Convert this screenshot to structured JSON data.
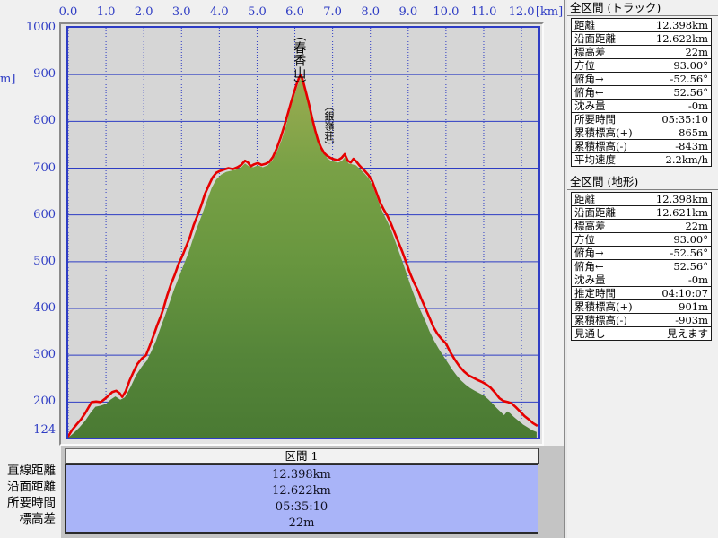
{
  "axes": {
    "x_ticks": [
      {
        "km": 0,
        "label": "0.0"
      },
      {
        "km": 1,
        "label": "1.0"
      },
      {
        "km": 2,
        "label": "2.0"
      },
      {
        "km": 3,
        "label": "3.0"
      },
      {
        "km": 4,
        "label": "4.0"
      },
      {
        "km": 5,
        "label": "5.0"
      },
      {
        "km": 6,
        "label": "6.0"
      },
      {
        "km": 7,
        "label": "7.0"
      },
      {
        "km": 8,
        "label": "8.0"
      },
      {
        "km": 9,
        "label": "9.0"
      },
      {
        "km": 10,
        "label": "10.0"
      },
      {
        "km": 11,
        "label": "11.0"
      },
      {
        "km": 12,
        "label": "12.0"
      }
    ],
    "x_unit_label": "[km]",
    "y_ticks": [
      {
        "m": 1000,
        "label": "1000"
      },
      {
        "m": 900,
        "label": "900"
      },
      {
        "m": 800,
        "label": "800"
      },
      {
        "m": 700,
        "label": "700"
      },
      {
        "m": 600,
        "label": "600"
      },
      {
        "m": 500,
        "label": "500"
      },
      {
        "m": 400,
        "label": "400"
      },
      {
        "m": 300,
        "label": "300"
      },
      {
        "m": 200,
        "label": "200"
      },
      {
        "m": 124,
        "label": "124"
      }
    ],
    "y_unit_fragment": "m]"
  },
  "chart_data": {
    "type": "area",
    "title": "",
    "xlabel": "[km]",
    "ylabel": "[m]",
    "x_range": [
      0,
      12.45
    ],
    "y_range": [
      124,
      1000
    ],
    "x_gridlines": [
      0,
      1,
      2,
      3,
      4,
      5,
      6,
      7,
      8,
      9,
      10,
      11,
      12
    ],
    "y_gridlines": [
      200,
      300,
      400,
      500,
      600,
      700,
      800,
      900
    ],
    "annotations": [
      {
        "label": "（春香山）",
        "km": 6.16,
        "top_m": 1000,
        "size": 14
      },
      {
        "label": "（銀嶺荘）",
        "km": 6.95,
        "top_m": 845,
        "size": 11
      }
    ],
    "series": [
      {
        "name": "terrain-profile",
        "role": "fill",
        "points": [
          [
            0.0,
            124
          ],
          [
            0.15,
            134
          ],
          [
            0.3,
            146
          ],
          [
            0.45,
            160
          ],
          [
            0.6,
            178
          ],
          [
            0.72,
            190
          ],
          [
            0.85,
            192
          ],
          [
            1.0,
            196
          ],
          [
            1.12,
            205
          ],
          [
            1.25,
            212
          ],
          [
            1.38,
            205
          ],
          [
            1.5,
            210
          ],
          [
            1.65,
            232
          ],
          [
            1.8,
            258
          ],
          [
            1.95,
            276
          ],
          [
            2.08,
            288
          ],
          [
            2.2,
            308
          ],
          [
            2.32,
            330
          ],
          [
            2.45,
            360
          ],
          [
            2.55,
            382
          ],
          [
            2.68,
            412
          ],
          [
            2.8,
            440
          ],
          [
            2.92,
            465
          ],
          [
            3.05,
            492
          ],
          [
            3.18,
            518
          ],
          [
            3.3,
            548
          ],
          [
            3.42,
            575
          ],
          [
            3.55,
            602
          ],
          [
            3.68,
            632
          ],
          [
            3.8,
            658
          ],
          [
            3.92,
            676
          ],
          [
            4.05,
            686
          ],
          [
            4.18,
            692
          ],
          [
            4.3,
            694
          ],
          [
            4.45,
            697
          ],
          [
            4.58,
            702
          ],
          [
            4.68,
            710
          ],
          [
            4.78,
            704
          ],
          [
            4.9,
            702
          ],
          [
            5.02,
            706
          ],
          [
            5.15,
            702
          ],
          [
            5.28,
            706
          ],
          [
            5.4,
            716
          ],
          [
            5.52,
            734
          ],
          [
            5.64,
            758
          ],
          [
            5.75,
            786
          ],
          [
            5.86,
            820
          ],
          [
            5.97,
            852
          ],
          [
            6.07,
            876
          ],
          [
            6.16,
            895
          ],
          [
            6.25,
            872
          ],
          [
            6.35,
            845
          ],
          [
            6.45,
            812
          ],
          [
            6.55,
            782
          ],
          [
            6.65,
            756
          ],
          [
            6.75,
            736
          ],
          [
            6.85,
            722
          ],
          [
            6.95,
            716
          ],
          [
            7.05,
            714
          ],
          [
            7.15,
            712
          ],
          [
            7.25,
            716
          ],
          [
            7.33,
            724
          ],
          [
            7.42,
            710
          ],
          [
            7.52,
            708
          ],
          [
            7.62,
            706
          ],
          [
            7.73,
            698
          ],
          [
            7.85,
            688
          ],
          [
            7.96,
            678
          ],
          [
            8.06,
            662
          ],
          [
            8.16,
            640
          ],
          [
            8.26,
            618
          ],
          [
            8.36,
            600
          ],
          [
            8.46,
            584
          ],
          [
            8.56,
            565
          ],
          [
            8.66,
            543
          ],
          [
            8.76,
            520
          ],
          [
            8.86,
            498
          ],
          [
            8.96,
            474
          ],
          [
            9.06,
            450
          ],
          [
            9.16,
            428
          ],
          [
            9.26,
            408
          ],
          [
            9.36,
            390
          ],
          [
            9.46,
            372
          ],
          [
            9.56,
            352
          ],
          [
            9.68,
            332
          ],
          [
            9.8,
            315
          ],
          [
            9.92,
            300
          ],
          [
            10.04,
            285
          ],
          [
            10.16,
            270
          ],
          [
            10.28,
            257
          ],
          [
            10.4,
            246
          ],
          [
            10.52,
            237
          ],
          [
            10.64,
            230
          ],
          [
            10.76,
            224
          ],
          [
            10.88,
            219
          ],
          [
            11.0,
            214
          ],
          [
            11.12,
            206
          ],
          [
            11.24,
            196
          ],
          [
            11.36,
            186
          ],
          [
            11.46,
            178
          ],
          [
            11.54,
            172
          ],
          [
            11.62,
            180
          ],
          [
            11.7,
            176
          ],
          [
            11.8,
            168
          ],
          [
            11.92,
            160
          ],
          [
            12.04,
            152
          ],
          [
            12.16,
            146
          ],
          [
            12.28,
            140
          ],
          [
            12.4,
            136
          ]
        ]
      },
      {
        "name": "track-profile",
        "role": "line",
        "points": [
          [
            0.0,
            127
          ],
          [
            0.1,
            140
          ],
          [
            0.22,
            152
          ],
          [
            0.34,
            163
          ],
          [
            0.45,
            176
          ],
          [
            0.55,
            190
          ],
          [
            0.62,
            200
          ],
          [
            0.74,
            201
          ],
          [
            0.86,
            200
          ],
          [
            0.96,
            206
          ],
          [
            1.06,
            213
          ],
          [
            1.16,
            221
          ],
          [
            1.27,
            224
          ],
          [
            1.36,
            219
          ],
          [
            1.43,
            211
          ],
          [
            1.52,
            223
          ],
          [
            1.62,
            245
          ],
          [
            1.72,
            263
          ],
          [
            1.83,
            281
          ],
          [
            1.95,
            293
          ],
          [
            2.06,
            300
          ],
          [
            2.16,
            320
          ],
          [
            2.26,
            342
          ],
          [
            2.36,
            365
          ],
          [
            2.45,
            383
          ],
          [
            2.52,
            400
          ],
          [
            2.62,
            428
          ],
          [
            2.72,
            452
          ],
          [
            2.82,
            472
          ],
          [
            2.92,
            495
          ],
          [
            3.02,
            512
          ],
          [
            3.12,
            532
          ],
          [
            3.22,
            552
          ],
          [
            3.32,
            578
          ],
          [
            3.42,
            598
          ],
          [
            3.52,
            620
          ],
          [
            3.62,
            645
          ],
          [
            3.72,
            663
          ],
          [
            3.82,
            680
          ],
          [
            3.92,
            690
          ],
          [
            4.02,
            694
          ],
          [
            4.12,
            697
          ],
          [
            4.24,
            700
          ],
          [
            4.36,
            698
          ],
          [
            4.48,
            702
          ],
          [
            4.58,
            707
          ],
          [
            4.68,
            716
          ],
          [
            4.76,
            712
          ],
          [
            4.83,
            704
          ],
          [
            4.92,
            708
          ],
          [
            5.02,
            711
          ],
          [
            5.12,
            707
          ],
          [
            5.22,
            709
          ],
          [
            5.32,
            713
          ],
          [
            5.42,
            724
          ],
          [
            5.52,
            742
          ],
          [
            5.62,
            764
          ],
          [
            5.72,
            790
          ],
          [
            5.81,
            815
          ],
          [
            5.89,
            838
          ],
          [
            5.97,
            860
          ],
          [
            6.05,
            880
          ],
          [
            6.11,
            893
          ],
          [
            6.16,
            900
          ],
          [
            6.22,
            885
          ],
          [
            6.3,
            860
          ],
          [
            6.38,
            835
          ],
          [
            6.46,
            806
          ],
          [
            6.54,
            780
          ],
          [
            6.62,
            758
          ],
          [
            6.7,
            743
          ],
          [
            6.78,
            732
          ],
          [
            6.86,
            726
          ],
          [
            6.94,
            722
          ],
          [
            7.04,
            719
          ],
          [
            7.14,
            717
          ],
          [
            7.24,
            722
          ],
          [
            7.32,
            730
          ],
          [
            7.4,
            716
          ],
          [
            7.48,
            712
          ],
          [
            7.55,
            720
          ],
          [
            7.62,
            715
          ],
          [
            7.72,
            705
          ],
          [
            7.84,
            695
          ],
          [
            7.95,
            685
          ],
          [
            8.05,
            672
          ],
          [
            8.15,
            650
          ],
          [
            8.25,
            628
          ],
          [
            8.35,
            612
          ],
          [
            8.45,
            598
          ],
          [
            8.55,
            580
          ],
          [
            8.65,
            560
          ],
          [
            8.75,
            540
          ],
          [
            8.85,
            520
          ],
          [
            8.95,
            498
          ],
          [
            9.05,
            475
          ],
          [
            9.15,
            456
          ],
          [
            9.25,
            440
          ],
          [
            9.34,
            422
          ],
          [
            9.45,
            402
          ],
          [
            9.55,
            383
          ],
          [
            9.67,
            360
          ],
          [
            9.78,
            345
          ],
          [
            9.89,
            334
          ],
          [
            10.0,
            325
          ],
          [
            10.12,
            306
          ],
          [
            10.24,
            290
          ],
          [
            10.36,
            276
          ],
          [
            10.48,
            265
          ],
          [
            10.6,
            257
          ],
          [
            10.72,
            252
          ],
          [
            10.84,
            247
          ],
          [
            10.95,
            243
          ],
          [
            11.06,
            238
          ],
          [
            11.18,
            231
          ],
          [
            11.3,
            220
          ],
          [
            11.42,
            208
          ],
          [
            11.53,
            202
          ],
          [
            11.64,
            200
          ],
          [
            11.74,
            197
          ],
          [
            11.85,
            189
          ],
          [
            11.96,
            180
          ],
          [
            12.08,
            170
          ],
          [
            12.19,
            163
          ],
          [
            12.3,
            155
          ],
          [
            12.4,
            150
          ]
        ]
      }
    ],
    "colors": {
      "plot_bg": "#d6d6d6",
      "grid": "#2e3cc4",
      "frame": "#2e3cc4",
      "axis_text": "#2e3cc4",
      "track_line": "#e60000",
      "fill_stops": [
        [
          0,
          "#a6b159"
        ],
        [
          0.12,
          "#9cac51"
        ],
        [
          0.34,
          "#79a146"
        ],
        [
          0.57,
          "#68963f"
        ],
        [
          0.8,
          "#558539"
        ],
        [
          1,
          "#4a7a33"
        ]
      ]
    },
    "legend": null,
    "grid": true
  },
  "right_panel": {
    "sections": [
      {
        "title": "全区間 (トラック)",
        "rows": [
          {
            "label": "距離",
            "value": "12.398km"
          },
          {
            "label": "沿面距離",
            "value": "12.622km"
          },
          {
            "label": "標高差",
            "value": "22m"
          },
          {
            "label": "方位",
            "value": "93.00°"
          },
          {
            "label": "俯角→",
            "value": "-52.56°"
          },
          {
            "label": "俯角←",
            "value": "52.56°"
          },
          {
            "label": "沈み量",
            "value": "-0m"
          },
          {
            "label": "所要時間",
            "value": "05:35:10"
          },
          {
            "label": "累積標高(+)",
            "value": "865m"
          },
          {
            "label": "累積標高(-)",
            "value": "-843m"
          },
          {
            "label": "平均速度",
            "value": "2.2km/h"
          }
        ]
      },
      {
        "title": "全区間 (地形)",
        "rows": [
          {
            "label": "距離",
            "value": "12.398km"
          },
          {
            "label": "沿面距離",
            "value": "12.621km"
          },
          {
            "label": "標高差",
            "value": "22m"
          },
          {
            "label": "方位",
            "value": "93.00°"
          },
          {
            "label": "俯角→",
            "value": "-52.56°"
          },
          {
            "label": "俯角←",
            "value": "52.56°"
          },
          {
            "label": "沈み量",
            "value": "-0m"
          },
          {
            "label": "推定時間",
            "value": "04:10:07"
          },
          {
            "label": "累積標高(+)",
            "value": "901m"
          },
          {
            "label": "累積標高(-)",
            "value": "-903m"
          },
          {
            "label": "見通し",
            "value": "見えます"
          }
        ]
      }
    ]
  },
  "section_panel": {
    "title": "区間 1",
    "row_labels": [
      "直線距離",
      "沿面距離",
      "所要時間",
      "標高差"
    ],
    "values": [
      "12.398km",
      "12.622km",
      "05:35:10",
      "22m"
    ]
  }
}
